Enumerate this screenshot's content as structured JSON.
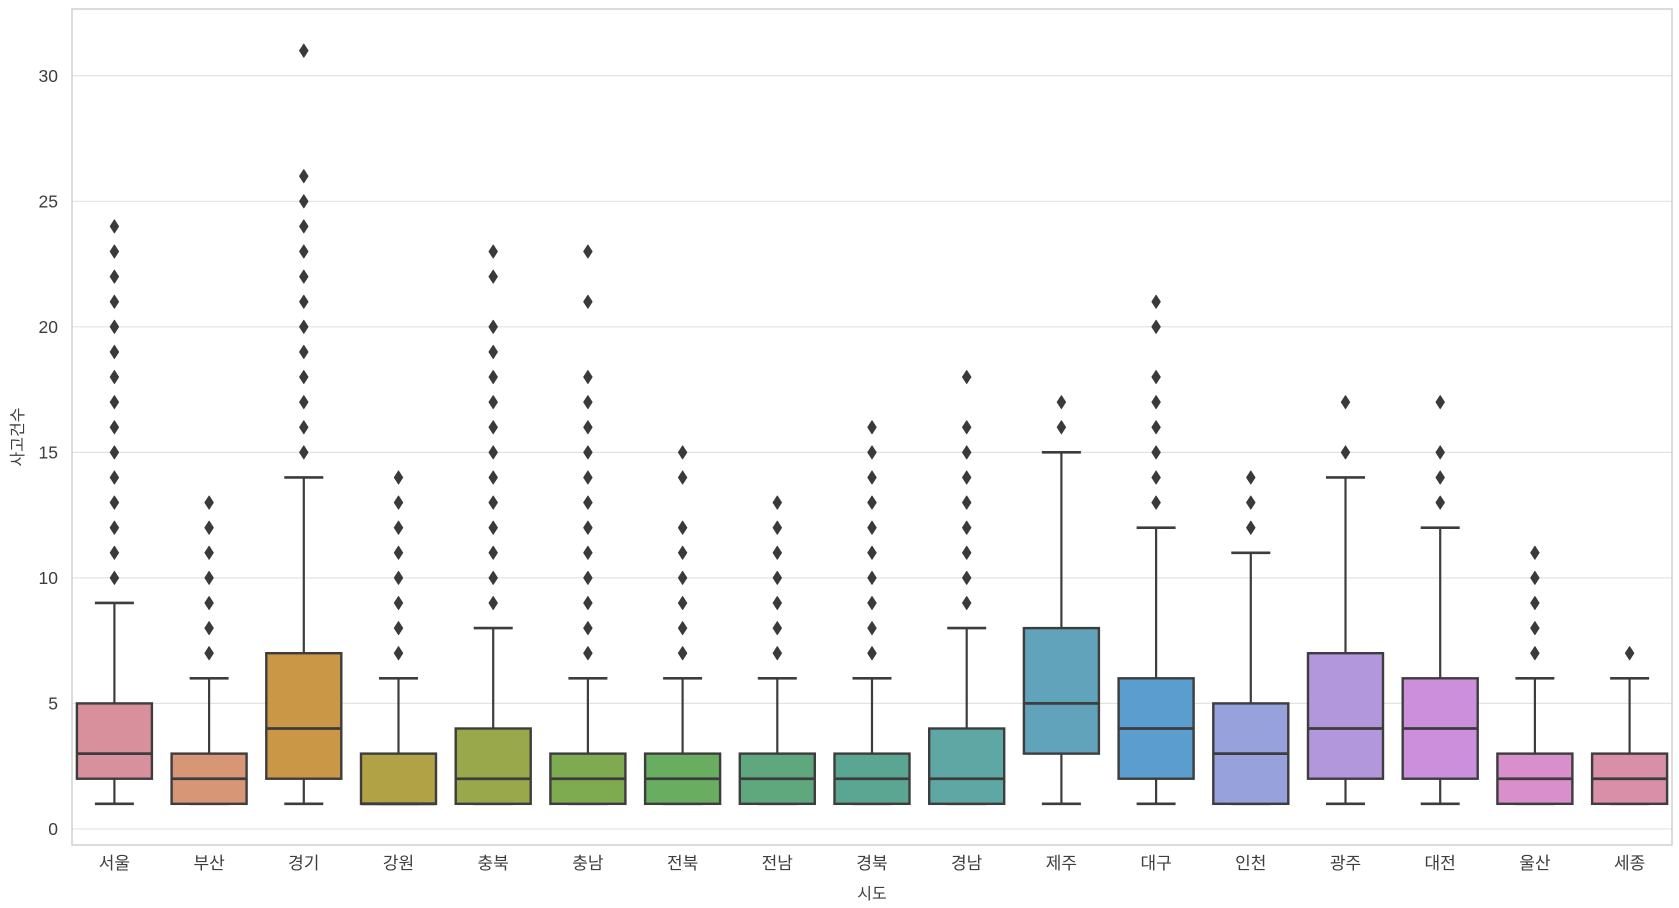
{
  "chart_data": {
    "type": "boxplot",
    "title": "",
    "xlabel": "시도",
    "ylabel": "사고건수",
    "yticks": [
      0,
      5,
      10,
      15,
      20,
      25,
      30
    ],
    "ylim": [
      -0.64,
      32.66
    ],
    "grid": "horizontal",
    "legend_position": "none",
    "background": "#ffffff",
    "grid_color": "#e3e3e3",
    "spine_color": "#cccccc",
    "line_color": "#3d3d3d",
    "tick_text_color": "#3d3d3d",
    "categories": [
      "서울",
      "부산",
      "경기",
      "강원",
      "충북",
      "충남",
      "전북",
      "전남",
      "경북",
      "경남",
      "제주",
      "대구",
      "인천",
      "광주",
      "대전",
      "울산",
      "세종"
    ],
    "series": [
      {
        "name": "서울",
        "color": "#d8909d",
        "whislo": 1,
        "q1": 2,
        "med": 3,
        "q3": 5,
        "whishi": 9,
        "outliers": [
          10,
          11,
          12,
          13,
          14,
          15,
          16,
          17,
          18,
          19,
          20,
          21,
          22,
          23,
          24
        ]
      },
      {
        "name": "부산",
        "color": "#d79777",
        "whislo": 1,
        "q1": 1,
        "med": 2,
        "q3": 3,
        "whishi": 6,
        "outliers": [
          7,
          8,
          9,
          10,
          11,
          12,
          13
        ]
      },
      {
        "name": "경기",
        "color": "#c99746",
        "whislo": 1,
        "q1": 2,
        "med": 4,
        "q3": 7,
        "whishi": 14,
        "outliers": [
          15,
          16,
          17,
          18,
          19,
          20,
          21,
          22,
          23,
          24,
          25,
          26,
          31
        ]
      },
      {
        "name": "강원",
        "color": "#b2a246",
        "whislo": 1,
        "q1": 1,
        "med": 1,
        "q3": 3,
        "whishi": 6,
        "outliers": [
          7,
          8,
          9,
          10,
          11,
          12,
          13,
          14
        ]
      },
      {
        "name": "충북",
        "color": "#9aa84c",
        "whislo": 1,
        "q1": 1,
        "med": 2,
        "q3": 4,
        "whishi": 8,
        "outliers": [
          9,
          10,
          11,
          12,
          13,
          14,
          15,
          16,
          17,
          18,
          19,
          20,
          22,
          23
        ]
      },
      {
        "name": "충남",
        "color": "#7fab50",
        "whislo": 1,
        "q1": 1,
        "med": 2,
        "q3": 3,
        "whishi": 6,
        "outliers": [
          7,
          8,
          9,
          10,
          11,
          12,
          13,
          14,
          15,
          16,
          17,
          18,
          21,
          23
        ]
      },
      {
        "name": "전북",
        "color": "#68ad60",
        "whislo": 1,
        "q1": 1,
        "med": 2,
        "q3": 3,
        "whishi": 6,
        "outliers": [
          7,
          8,
          9,
          10,
          11,
          12,
          14,
          15
        ]
      },
      {
        "name": "전남",
        "color": "#5fa87e",
        "whislo": 1,
        "q1": 1,
        "med": 2,
        "q3": 3,
        "whishi": 6,
        "outliers": [
          7,
          8,
          9,
          10,
          11,
          12,
          13
        ]
      },
      {
        "name": "경북",
        "color": "#5ba692",
        "whislo": 1,
        "q1": 1,
        "med": 2,
        "q3": 3,
        "whishi": 6,
        "outliers": [
          7,
          8,
          9,
          10,
          11,
          12,
          13,
          14,
          15,
          16
        ]
      },
      {
        "name": "경남",
        "color": "#5fa7a4",
        "whislo": 1,
        "q1": 1,
        "med": 2,
        "q3": 4,
        "whishi": 8,
        "outliers": [
          9,
          10,
          11,
          12,
          13,
          14,
          15,
          16,
          18
        ]
      },
      {
        "name": "제주",
        "color": "#60a3bb",
        "whislo": 1,
        "q1": 3,
        "med": 5,
        "q3": 8,
        "whishi": 15,
        "outliers": [
          16,
          17
        ]
      },
      {
        "name": "대구",
        "color": "#5b9dce",
        "whislo": 1,
        "q1": 2,
        "med": 4,
        "q3": 6,
        "whishi": 12,
        "outliers": [
          13,
          14,
          15,
          16,
          17,
          18,
          20,
          21
        ]
      },
      {
        "name": "인천",
        "color": "#97a2dc",
        "whislo": 1,
        "q1": 1,
        "med": 3,
        "q3": 5,
        "whishi": 11,
        "outliers": [
          12,
          13,
          14
        ]
      },
      {
        "name": "광주",
        "color": "#b297dc",
        "whislo": 1,
        "q1": 2,
        "med": 4,
        "q3": 7,
        "whishi": 14,
        "outliers": [
          15,
          17
        ]
      },
      {
        "name": "대전",
        "color": "#cb8fdc",
        "whislo": 1,
        "q1": 2,
        "med": 4,
        "q3": 6,
        "whishi": 12,
        "outliers": [
          13,
          14,
          15,
          17
        ]
      },
      {
        "name": "울산",
        "color": "#d88fcb",
        "whislo": 1,
        "q1": 1,
        "med": 2,
        "q3": 3,
        "whishi": 6,
        "outliers": [
          7,
          8,
          9,
          10,
          11
        ]
      },
      {
        "name": "세종",
        "color": "#d88fa7",
        "whislo": 1,
        "q1": 1,
        "med": 2,
        "q3": 3,
        "whishi": 6,
        "outliers": [
          7
        ]
      }
    ]
  }
}
